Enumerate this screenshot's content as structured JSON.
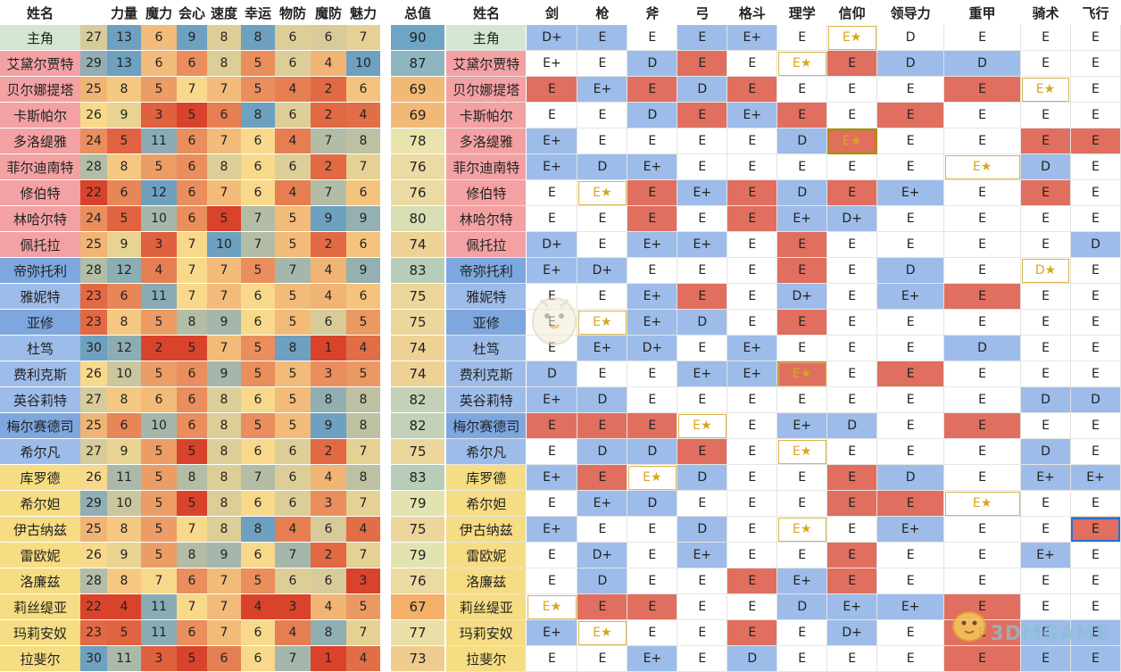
{
  "headers": {
    "name": "姓名",
    "stats": [
      "力量",
      "魔力",
      "会心",
      "速度",
      "幸运",
      "物防",
      "魔防",
      "魅力"
    ],
    "total": "总值",
    "skills": [
      "剑",
      "枪",
      "斧",
      "弓",
      "格斗",
      "理学",
      "信仰",
      "领导力",
      "重甲",
      "骑术",
      "飞行"
    ]
  },
  "characters": [
    {
      "name": "主角",
      "color": "#d3e7d0",
      "stats": [
        27,
        13,
        6,
        9,
        8,
        8,
        6,
        6,
        7
      ],
      "skills": [
        "D+",
        "E",
        "E",
        "E",
        "E+",
        "E",
        "E★",
        "D",
        "E",
        "E",
        "E"
      ]
    },
    {
      "name": "艾黛尔贾特",
      "color": "#f3a1a3",
      "stats": [
        29,
        13,
        6,
        6,
        8,
        5,
        6,
        4,
        10
      ],
      "skills": [
        "E+",
        "E",
        "D",
        "E",
        "E",
        "E★",
        "E",
        "D",
        "D",
        "E",
        "E"
      ]
    },
    {
      "name": "贝尔娜提塔",
      "color": "#f3a1a3",
      "stats": [
        25,
        8,
        5,
        7,
        7,
        5,
        4,
        2,
        6
      ],
      "skills": [
        "E",
        "E+",
        "E",
        "D",
        "E",
        "E",
        "E",
        "E",
        "E",
        "E★",
        "E"
      ]
    },
    {
      "name": "卡斯帕尔",
      "color": "#f3a1a3",
      "stats": [
        26,
        9,
        3,
        5,
        6,
        8,
        6,
        2,
        4
      ],
      "skills": [
        "E",
        "E",
        "D",
        "E",
        "E+",
        "E",
        "E",
        "E",
        "E",
        "E",
        "E"
      ]
    },
    {
      "name": "多洛缇雅",
      "color": "#f3a1a3",
      "stats": [
        24,
        5,
        11,
        6,
        7,
        6,
        4,
        7,
        8
      ],
      "skills": [
        "E+",
        "E",
        "E",
        "E",
        "E",
        "D",
        "E★",
        "E",
        "E",
        "E",
        "E"
      ]
    },
    {
      "name": "菲尔迪南特",
      "color": "#f3a1a3",
      "stats": [
        28,
        8,
        5,
        6,
        8,
        6,
        6,
        2,
        7
      ],
      "skills": [
        "E+",
        "D",
        "E+",
        "E",
        "E",
        "E",
        "E",
        "E",
        "E★",
        "D",
        "E"
      ]
    },
    {
      "name": "修伯特",
      "color": "#f3a1a3",
      "stats": [
        22,
        6,
        12,
        6,
        7,
        6,
        4,
        7,
        6
      ],
      "skills": [
        "E",
        "E★",
        "E",
        "E+",
        "E",
        "D",
        "E",
        "E+",
        "E",
        "E",
        "E"
      ]
    },
    {
      "name": "林哈尔特",
      "color": "#f3a1a3",
      "stats": [
        24,
        5,
        10,
        6,
        5,
        7,
        5,
        9,
        9
      ],
      "skills": [
        "E",
        "E",
        "E",
        "E",
        "E",
        "E+",
        "D+",
        "E",
        "E",
        "E",
        "E"
      ]
    },
    {
      "name": "佩托拉",
      "color": "#f3a1a3",
      "stats": [
        25,
        9,
        3,
        7,
        10,
        7,
        5,
        2,
        6
      ],
      "skills": [
        "D+",
        "E",
        "E+",
        "E+",
        "E",
        "E",
        "E",
        "E",
        "E",
        "E",
        "D"
      ]
    },
    {
      "name": "帝弥托利",
      "color": "#7ea7e0",
      "stats": [
        28,
        12,
        4,
        7,
        7,
        5,
        7,
        4,
        9
      ],
      "skills": [
        "E+",
        "D+",
        "E",
        "E",
        "E",
        "E",
        "E",
        "D",
        "E",
        "D★",
        "E"
      ]
    },
    {
      "name": "雅妮特",
      "color": "#9dbce9",
      "stats": [
        23,
        6,
        11,
        7,
        7,
        6,
        5,
        4,
        6
      ],
      "skills": [
        "E",
        "E",
        "E+",
        "E",
        "E",
        "D+",
        "E",
        "E+",
        "E",
        "E",
        "E"
      ]
    },
    {
      "name": "亚修",
      "color": "#7ea7e0",
      "stats": [
        23,
        8,
        5,
        8,
        9,
        6,
        5,
        6,
        5
      ],
      "skills": [
        "E",
        "E★",
        "E+",
        "D",
        "E",
        "E",
        "E",
        "E",
        "E",
        "E",
        "E"
      ]
    },
    {
      "name": "杜笃",
      "color": "#9dbce9",
      "stats": [
        30,
        12,
        2,
        5,
        7,
        5,
        8,
        1,
        4
      ],
      "skills": [
        "E",
        "E+",
        "D+",
        "E",
        "E+",
        "E",
        "E",
        "E",
        "D",
        "E",
        "E"
      ]
    },
    {
      "name": "费利克斯",
      "color": "#9dbce9",
      "stats": [
        26,
        10,
        5,
        6,
        9,
        5,
        5,
        3,
        5
      ],
      "skills": [
        "D",
        "E",
        "E",
        "E+",
        "E+",
        "E★",
        "E",
        "E",
        "E",
        "E",
        "E"
      ]
    },
    {
      "name": "英谷莉特",
      "color": "#9dbce9",
      "stats": [
        27,
        8,
        6,
        6,
        8,
        6,
        5,
        8,
        8
      ],
      "skills": [
        "E+",
        "D",
        "E",
        "E",
        "E",
        "E",
        "E",
        "E",
        "E",
        "D",
        "D"
      ]
    },
    {
      "name": "梅尔赛德司",
      "color": "#7ea7e0",
      "stats": [
        25,
        6,
        10,
        6,
        8,
        5,
        5,
        9,
        8
      ],
      "skills": [
        "E",
        "E",
        "E",
        "E★",
        "E",
        "E+",
        "D",
        "E",
        "E",
        "E",
        "E"
      ]
    },
    {
      "name": "希尔凡",
      "color": "#9dbce9",
      "stats": [
        27,
        9,
        5,
        5,
        8,
        6,
        6,
        2,
        7
      ],
      "skills": [
        "E",
        "D",
        "D",
        "E",
        "E",
        "E★",
        "E",
        "E",
        "E",
        "D",
        "E"
      ]
    },
    {
      "name": "库罗德",
      "color": "#f6dc82",
      "stats": [
        26,
        11,
        5,
        8,
        8,
        7,
        6,
        4,
        8
      ],
      "skills": [
        "E+",
        "E",
        "E★",
        "D",
        "E",
        "E",
        "E",
        "D",
        "E",
        "E+",
        "E+"
      ]
    },
    {
      "name": "希尔妲",
      "color": "#f6dc82",
      "stats": [
        29,
        10,
        5,
        5,
        8,
        6,
        6,
        3,
        7
      ],
      "skills": [
        "E",
        "E+",
        "D",
        "E",
        "E",
        "E",
        "E",
        "E",
        "E★",
        "E",
        "E"
      ]
    },
    {
      "name": "伊古纳兹",
      "color": "#f6dc82",
      "stats": [
        25,
        8,
        5,
        7,
        8,
        8,
        4,
        6,
        4
      ],
      "skills": [
        "E+",
        "E",
        "E",
        "D",
        "E",
        "E★",
        "E",
        "E+",
        "E",
        "E",
        "E"
      ]
    },
    {
      "name": "雷欧妮",
      "color": "#f6dc82",
      "stats": [
        26,
        9,
        5,
        8,
        9,
        6,
        7,
        2,
        7
      ],
      "skills": [
        "E",
        "D+",
        "E",
        "E+",
        "E",
        "E",
        "E",
        "E",
        "E",
        "E+",
        "E"
      ]
    },
    {
      "name": "洛廉兹",
      "color": "#f6dc82",
      "stats": [
        28,
        8,
        7,
        6,
        7,
        5,
        6,
        6,
        3
      ],
      "skills": [
        "E",
        "D",
        "E",
        "E",
        "E",
        "E+",
        "E",
        "E",
        "E",
        "E",
        "E"
      ]
    },
    {
      "name": "莉丝缇亚",
      "color": "#f6dc82",
      "stats": [
        22,
        4,
        11,
        7,
        7,
        4,
        3,
        4,
        5
      ],
      "skills": [
        "E★",
        "E",
        "E",
        "E",
        "E",
        "D",
        "E+",
        "E+",
        "E",
        "E",
        "E"
      ]
    },
    {
      "name": "玛莉安奴",
      "color": "#f6dc82",
      "stats": [
        23,
        5,
        11,
        6,
        7,
        6,
        4,
        8,
        7
      ],
      "skills": [
        "E+",
        "E★",
        "E",
        "E",
        "E",
        "E",
        "D+",
        "E",
        "E",
        "E",
        "E"
      ]
    },
    {
      "name": "拉斐尔",
      "color": "#f6dc82",
      "stats": [
        30,
        11,
        3,
        5,
        6,
        6,
        7,
        1,
        4
      ],
      "skills": [
        "E",
        "E",
        "E+",
        "E",
        "D",
        "E",
        "E",
        "E",
        "E",
        "E",
        "E"
      ]
    }
  ],
  "totals": [
    90,
    87,
    69,
    69,
    78,
    76,
    76,
    80,
    74,
    83,
    75,
    75,
    74,
    74,
    82,
    82,
    75,
    83,
    79,
    75,
    79,
    76,
    67,
    77,
    73
  ],
  "skill_bg": [
    [
      "#9dbce9",
      "#9dbce9",
      "#ffffff",
      "#9dbce9",
      "#9dbce9",
      "#ffffff",
      "#ffffff",
      "#ffffff",
      "#ffffff",
      "#ffffff",
      "#ffffff"
    ],
    [
      "#ffffff",
      "#ffffff",
      "#9dbce9",
      "#e06f5f",
      "#ffffff",
      "#ffffff",
      "#e06f5f",
      "#9dbce9",
      "#9dbce9",
      "#ffffff",
      "#ffffff"
    ],
    [
      "#e06f5f",
      "#9dbce9",
      "#e06f5f",
      "#9dbce9",
      "#e06f5f",
      "#ffffff",
      "#ffffff",
      "#ffffff",
      "#e06f5f",
      "#ffffff",
      "#ffffff"
    ],
    [
      "#ffffff",
      "#ffffff",
      "#9dbce9",
      "#e06f5f",
      "#9dbce9",
      "#e06f5f",
      "#ffffff",
      "#e06f5f",
      "#ffffff",
      "#ffffff",
      "#ffffff"
    ],
    [
      "#9dbce9",
      "#ffffff",
      "#ffffff",
      "#ffffff",
      "#ffffff",
      "#9dbce9",
      "#e06f5f",
      "#ffffff",
      "#ffffff",
      "#e06f5f",
      "#e06f5f"
    ],
    [
      "#9dbce9",
      "#9dbce9",
      "#9dbce9",
      "#ffffff",
      "#ffffff",
      "#ffffff",
      "#ffffff",
      "#ffffff",
      "#ffffff",
      "#9dbce9",
      "#ffffff"
    ],
    [
      "#ffffff",
      "#ffffff",
      "#e06f5f",
      "#9dbce9",
      "#e06f5f",
      "#9dbce9",
      "#e06f5f",
      "#9dbce9",
      "#ffffff",
      "#e06f5f",
      "#ffffff"
    ],
    [
      "#ffffff",
      "#ffffff",
      "#e06f5f",
      "#ffffff",
      "#e06f5f",
      "#9dbce9",
      "#9dbce9",
      "#ffffff",
      "#ffffff",
      "#ffffff",
      "#ffffff"
    ],
    [
      "#9dbce9",
      "#ffffff",
      "#9dbce9",
      "#9dbce9",
      "#ffffff",
      "#e06f5f",
      "#ffffff",
      "#ffffff",
      "#ffffff",
      "#ffffff",
      "#9dbce9"
    ],
    [
      "#9dbce9",
      "#9dbce9",
      "#ffffff",
      "#ffffff",
      "#ffffff",
      "#e06f5f",
      "#ffffff",
      "#9dbce9",
      "#ffffff",
      "#ffffff",
      "#ffffff"
    ],
    [
      "#ffffff",
      "#ffffff",
      "#9dbce9",
      "#e06f5f",
      "#ffffff",
      "#9dbce9",
      "#ffffff",
      "#9dbce9",
      "#e06f5f",
      "#ffffff",
      "#ffffff"
    ],
    [
      "#ffffff",
      "#ffffff",
      "#9dbce9",
      "#9dbce9",
      "#ffffff",
      "#e06f5f",
      "#ffffff",
      "#ffffff",
      "#ffffff",
      "#ffffff",
      "#ffffff"
    ],
    [
      "#ffffff",
      "#9dbce9",
      "#9dbce9",
      "#ffffff",
      "#9dbce9",
      "#ffffff",
      "#ffffff",
      "#ffffff",
      "#9dbce9",
      "#ffffff",
      "#ffffff"
    ],
    [
      "#9dbce9",
      "#ffffff",
      "#ffffff",
      "#9dbce9",
      "#9dbce9",
      "#e06f5f",
      "#ffffff",
      "#e06f5f",
      "#ffffff",
      "#ffffff",
      "#ffffff"
    ],
    [
      "#9dbce9",
      "#9dbce9",
      "#ffffff",
      "#ffffff",
      "#ffffff",
      "#ffffff",
      "#ffffff",
      "#ffffff",
      "#ffffff",
      "#9dbce9",
      "#9dbce9"
    ],
    [
      "#e06f5f",
      "#e06f5f",
      "#e06f5f",
      "#ffffff",
      "#ffffff",
      "#9dbce9",
      "#9dbce9",
      "#ffffff",
      "#e06f5f",
      "#ffffff",
      "#ffffff"
    ],
    [
      "#ffffff",
      "#9dbce9",
      "#9dbce9",
      "#e06f5f",
      "#ffffff",
      "#ffffff",
      "#ffffff",
      "#ffffff",
      "#ffffff",
      "#9dbce9",
      "#ffffff"
    ],
    [
      "#9dbce9",
      "#e06f5f",
      "#ffffff",
      "#9dbce9",
      "#ffffff",
      "#ffffff",
      "#e06f5f",
      "#9dbce9",
      "#ffffff",
      "#9dbce9",
      "#9dbce9"
    ],
    [
      "#ffffff",
      "#9dbce9",
      "#9dbce9",
      "#ffffff",
      "#ffffff",
      "#ffffff",
      "#e06f5f",
      "#e06f5f",
      "#ffffff",
      "#ffffff",
      "#ffffff"
    ],
    [
      "#9dbce9",
      "#ffffff",
      "#ffffff",
      "#9dbce9",
      "#ffffff",
      "#ffffff",
      "#ffffff",
      "#9dbce9",
      "#ffffff",
      "#ffffff",
      "#e06f5f"
    ],
    [
      "#ffffff",
      "#9dbce9",
      "#ffffff",
      "#9dbce9",
      "#ffffff",
      "#ffffff",
      "#e06f5f",
      "#ffffff",
      "#ffffff",
      "#9dbce9",
      "#ffffff"
    ],
    [
      "#ffffff",
      "#9dbce9",
      "#ffffff",
      "#ffffff",
      "#e06f5f",
      "#9dbce9",
      "#e06f5f",
      "#ffffff",
      "#ffffff",
      "#ffffff",
      "#ffffff"
    ],
    [
      "#ffffff",
      "#e06f5f",
      "#e06f5f",
      "#ffffff",
      "#ffffff",
      "#9dbce9",
      "#9dbce9",
      "#9dbce9",
      "#e06f5f",
      "#ffffff",
      "#ffffff"
    ],
    [
      "#9dbce9",
      "#ffffff",
      "#ffffff",
      "#ffffff",
      "#e06f5f",
      "#ffffff",
      "#9dbce9",
      "#ffffff",
      "#e06f5f",
      "#9dbce9",
      "#9dbce9"
    ],
    [
      "#ffffff",
      "#ffffff",
      "#9dbce9",
      "#ffffff",
      "#9dbce9",
      "#ffffff",
      "#ffffff",
      "#ffffff",
      "#e06f5f",
      "#9dbce9",
      "#9dbce9"
    ]
  ],
  "heat_colors": {
    "hp": [
      "#6ea5c4",
      "#e8e6b0",
      "#f4b06a"
    ],
    "low": "#d9432c",
    "mid": "#f8d98c",
    "high": "#6ea0c0"
  },
  "icons": {
    "mascot": "bird-mascot-icon"
  },
  "watermark": "3DMGAME"
}
